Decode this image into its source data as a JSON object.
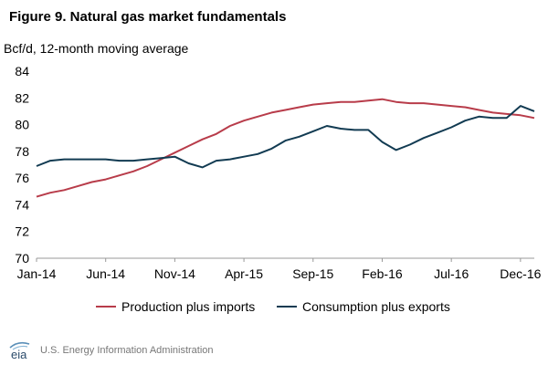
{
  "title": "Figure 9. Natural gas market fundamentals",
  "footer": {
    "logo_text": "eia",
    "source": "U.S. Energy Information Administration"
  },
  "colors": {
    "production": "#b83c4a",
    "consumption": "#123b52",
    "axis": "#999999"
  },
  "chart_data": {
    "type": "line",
    "ylabel": "Bcf/d, 12-month moving average",
    "ylim": [
      70,
      84
    ],
    "yticks": [
      70,
      72,
      74,
      76,
      78,
      80,
      82,
      84
    ],
    "grid": false,
    "legend_placement": "bottom",
    "xticks": [
      "Jan-14",
      "Jun-14",
      "Nov-14",
      "Apr-15",
      "Sep-15",
      "Feb-16",
      "Jul-16",
      "Dec-16"
    ],
    "x": [
      "Jan-14",
      "Feb-14",
      "Mar-14",
      "Apr-14",
      "May-14",
      "Jun-14",
      "Jul-14",
      "Aug-14",
      "Sep-14",
      "Oct-14",
      "Nov-14",
      "Dec-14",
      "Jan-15",
      "Feb-15",
      "Mar-15",
      "Apr-15",
      "May-15",
      "Jun-15",
      "Jul-15",
      "Aug-15",
      "Sep-15",
      "Oct-15",
      "Nov-15",
      "Dec-15",
      "Jan-16",
      "Feb-16",
      "Mar-16",
      "Apr-16",
      "May-16",
      "Jun-16",
      "Jul-16",
      "Aug-16",
      "Sep-16",
      "Oct-16",
      "Nov-16",
      "Dec-16",
      "Jan-17"
    ],
    "series": [
      {
        "name": "Production plus imports",
        "values": [
          74.6,
          74.9,
          75.1,
          75.4,
          75.7,
          75.9,
          76.2,
          76.5,
          76.9,
          77.4,
          77.9,
          78.4,
          78.9,
          79.3,
          79.9,
          80.3,
          80.6,
          80.9,
          81.1,
          81.3,
          81.5,
          81.6,
          81.7,
          81.7,
          81.8,
          81.9,
          81.7,
          81.6,
          81.6,
          81.5,
          81.4,
          81.3,
          81.1,
          80.9,
          80.8,
          80.7,
          80.5
        ]
      },
      {
        "name": "Consumption plus exports",
        "values": [
          76.9,
          77.3,
          77.4,
          77.4,
          77.4,
          77.4,
          77.3,
          77.3,
          77.4,
          77.5,
          77.6,
          77.1,
          76.8,
          77.3,
          77.4,
          77.6,
          77.8,
          78.2,
          78.8,
          79.1,
          79.5,
          79.9,
          79.7,
          79.6,
          79.6,
          78.7,
          78.1,
          78.5,
          79.0,
          79.4,
          79.8,
          80.3,
          80.6,
          80.5,
          80.5,
          81.4,
          81.0
        ]
      }
    ]
  }
}
